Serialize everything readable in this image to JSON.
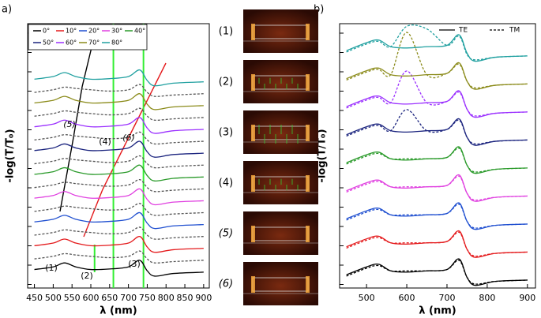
{
  "chart_data": [
    {
      "type": "line",
      "panel_label": "a)",
      "xlabel": "λ (nm)",
      "ylabel": "-log(T/T₀)",
      "x": [
        450,
        500,
        530,
        560,
        600,
        650,
        700,
        730,
        750,
        770,
        820,
        900
      ],
      "xlim": [
        432,
        915
      ],
      "xticks": [
        450,
        500,
        550,
        600,
        650,
        700,
        750,
        800,
        850,
        900
      ],
      "ylim": [
        0,
        10
      ],
      "series": [
        {
          "name": "0°",
          "color": "#000000",
          "values": [
            0.7,
            0.8,
            0.95,
            0.8,
            0.7,
            0.72,
            0.8,
            1.05,
            0.65,
            0.45,
            0.55,
            0.6
          ]
        },
        {
          "name": "10°",
          "color": "#e41a1c",
          "values": [
            1.6,
            1.7,
            1.85,
            1.7,
            1.6,
            1.62,
            1.7,
            1.95,
            1.55,
            1.35,
            1.45,
            1.5
          ]
        },
        {
          "name": "20°",
          "color": "#1f4fd0",
          "values": [
            2.5,
            2.6,
            2.75,
            2.6,
            2.5,
            2.52,
            2.6,
            2.85,
            2.45,
            2.25,
            2.35,
            2.4
          ]
        },
        {
          "name": "30°",
          "color": "#e040e0",
          "values": [
            3.4,
            3.5,
            3.65,
            3.5,
            3.4,
            3.42,
            3.5,
            3.75,
            3.35,
            3.15,
            3.25,
            3.3
          ]
        },
        {
          "name": "40°",
          "color": "#2a9a2a",
          "values": [
            4.3,
            4.4,
            4.55,
            4.4,
            4.3,
            4.32,
            4.4,
            4.65,
            4.25,
            4.05,
            4.15,
            4.2
          ]
        },
        {
          "name": "50°",
          "color": "#1a237e",
          "values": [
            5.2,
            5.3,
            5.45,
            5.3,
            5.2,
            5.22,
            5.3,
            5.55,
            5.15,
            4.95,
            5.05,
            5.1
          ]
        },
        {
          "name": "60°",
          "color": "#9b30ff",
          "values": [
            6.1,
            6.2,
            6.35,
            6.2,
            6.1,
            6.12,
            6.2,
            6.45,
            6.05,
            5.85,
            5.95,
            6.0
          ]
        },
        {
          "name": "70°",
          "color": "#8b8b1a",
          "values": [
            7.0,
            7.1,
            7.25,
            7.1,
            7.0,
            7.02,
            7.1,
            7.35,
            6.95,
            6.75,
            6.85,
            6.9
          ]
        },
        {
          "name": "80°",
          "color": "#20a0a0",
          "values": [
            7.9,
            8.0,
            8.15,
            8.0,
            7.9,
            7.92,
            8.0,
            8.25,
            7.85,
            7.65,
            7.75,
            7.8
          ]
        }
      ],
      "dashed_color": "#555555",
      "dashed_series": [
        [
          1.1,
          1.2,
          1.3,
          1.25,
          1.2,
          1.15,
          1.2,
          1.4,
          1.1,
          0.95,
          1.0,
          1.05
        ],
        [
          2.0,
          2.1,
          2.2,
          2.15,
          2.1,
          2.05,
          2.1,
          2.3,
          2.0,
          1.85,
          1.9,
          1.95
        ],
        [
          2.9,
          3.0,
          3.1,
          3.05,
          3.0,
          2.95,
          3.0,
          3.2,
          2.9,
          2.75,
          2.8,
          2.85
        ],
        [
          3.8,
          3.9,
          4.0,
          3.95,
          3.9,
          3.85,
          3.9,
          4.1,
          3.8,
          3.65,
          3.7,
          3.75
        ],
        [
          4.7,
          4.8,
          4.9,
          4.85,
          4.8,
          4.75,
          4.8,
          5.0,
          4.7,
          4.55,
          4.6,
          4.65
        ],
        [
          5.6,
          5.7,
          5.8,
          5.75,
          5.7,
          5.65,
          5.7,
          5.9,
          5.6,
          5.45,
          5.5,
          5.55
        ],
        [
          6.5,
          6.6,
          6.7,
          6.65,
          6.6,
          6.55,
          6.6,
          6.8,
          6.5,
          6.35,
          6.4,
          6.45
        ],
        [
          7.4,
          7.5,
          7.6,
          7.55,
          7.5,
          7.45,
          7.5,
          7.7,
          7.4,
          7.25,
          7.3,
          7.35
        ]
      ],
      "vlines": [
        610,
        660,
        740
      ],
      "vline_color": "#33ee33",
      "annotations": [
        "(1)",
        "(2)",
        "(3)",
        "(4)",
        "(5)",
        "(6)"
      ]
    },
    {
      "type": "line",
      "panel_label": "b)",
      "xlabel": "λ (nm)",
      "ylabel": "-log(T/T₀)",
      "x": [
        450,
        500,
        530,
        560,
        600,
        650,
        700,
        730,
        750,
        770,
        820,
        900
      ],
      "xlim": [
        433,
        920
      ],
      "xticks": [
        500,
        600,
        700,
        800,
        900
      ],
      "ylim": [
        0,
        10
      ],
      "legend": [
        "TE",
        "TM"
      ],
      "series": [
        {
          "color": "#000000",
          "values": [
            0.5,
            0.8,
            0.9,
            0.65,
            0.6,
            0.65,
            0.7,
            1.1,
            0.4,
            0.1,
            0.25,
            0.3
          ],
          "tm_values": [
            0.45,
            0.75,
            0.85,
            0.65,
            0.65,
            0.65,
            0.7,
            1.05,
            0.4,
            0.15,
            0.25,
            0.3
          ]
        },
        {
          "color": "#e41a1c",
          "values": [
            1.56,
            1.86,
            1.96,
            1.71,
            1.66,
            1.71,
            1.76,
            2.16,
            1.46,
            1.16,
            1.31,
            1.36
          ],
          "tm_values": [
            1.51,
            1.81,
            1.91,
            1.71,
            1.71,
            1.71,
            1.76,
            2.11,
            1.46,
            1.21,
            1.31,
            1.36
          ]
        },
        {
          "color": "#1f4fd0",
          "values": [
            2.62,
            2.92,
            3.02,
            2.77,
            2.72,
            2.77,
            2.82,
            3.22,
            2.52,
            2.22,
            2.37,
            2.42
          ],
          "tm_values": [
            2.57,
            2.87,
            2.97,
            2.77,
            2.77,
            2.77,
            2.82,
            3.17,
            2.52,
            2.27,
            2.37,
            2.42
          ]
        },
        {
          "color": "#e040e0",
          "values": [
            3.68,
            3.98,
            4.08,
            3.83,
            3.78,
            3.83,
            3.88,
            4.28,
            3.58,
            3.28,
            3.43,
            3.48
          ],
          "tm_values": [
            3.63,
            3.93,
            4.03,
            3.83,
            3.83,
            3.83,
            3.88,
            4.23,
            3.58,
            3.33,
            3.43,
            3.48
          ]
        },
        {
          "color": "#2a9a2a",
          "values": [
            4.74,
            5.04,
            5.14,
            4.89,
            4.84,
            4.89,
            4.94,
            5.34,
            4.64,
            4.34,
            4.49,
            4.54
          ],
          "tm_values": [
            4.69,
            4.99,
            5.09,
            4.89,
            4.89,
            4.89,
            4.94,
            5.29,
            4.64,
            4.39,
            4.49,
            4.54
          ]
        },
        {
          "color": "#1a237e",
          "values": [
            5.8,
            6.1,
            6.2,
            5.95,
            5.9,
            5.95,
            6.0,
            6.4,
            5.7,
            5.4,
            5.55,
            5.6
          ],
          "tm_values": [
            5.75,
            6.05,
            6.15,
            5.95,
            6.75,
            5.95,
            6.0,
            6.35,
            5.7,
            5.45,
            5.55,
            5.6
          ]
        },
        {
          "color": "#9b30ff",
          "values": [
            6.86,
            7.16,
            7.26,
            7.01,
            6.96,
            7.01,
            7.06,
            7.46,
            6.76,
            6.46,
            6.61,
            6.66
          ],
          "tm_values": [
            6.81,
            7.11,
            7.21,
            7.01,
            8.21,
            7.01,
            7.06,
            7.41,
            6.76,
            6.51,
            6.61,
            6.66
          ]
        },
        {
          "color": "#8b8b1a",
          "values": [
            7.92,
            8.22,
            8.32,
            8.07,
            8.02,
            8.07,
            8.12,
            8.52,
            7.82,
            7.52,
            7.67,
            7.72
          ],
          "tm_values": [
            7.87,
            8.17,
            8.27,
            8.07,
            9.67,
            8.07,
            8.12,
            8.47,
            7.82,
            7.57,
            7.67,
            7.72
          ]
        },
        {
          "color": "#20a0a0",
          "values": [
            8.98,
            9.28,
            9.38,
            9.13,
            9.08,
            9.13,
            9.18,
            9.58,
            8.88,
            8.58,
            8.73,
            8.78
          ],
          "tm_values": [
            8.93,
            9.23,
            9.33,
            9.13,
            9.9,
            9.8,
            9.18,
            9.53,
            8.83,
            8.63,
            8.73,
            8.78
          ]
        }
      ]
    },
    {
      "type": "images",
      "labels": [
        "(1)",
        "(2)",
        "(3)",
        "(4)",
        "(5)",
        "(6)"
      ]
    }
  ]
}
